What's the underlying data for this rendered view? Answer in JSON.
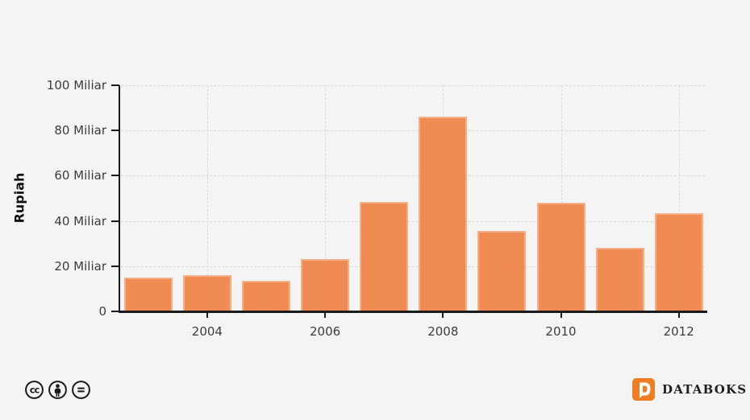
{
  "chart_data": {
    "type": "bar",
    "title": "",
    "xlabel": "",
    "ylabel": "Rupiah",
    "unit": "Miliar",
    "categories": [
      "2003",
      "2004",
      "2005",
      "2006",
      "2007",
      "2008",
      "2009",
      "2010",
      "2011",
      "2012"
    ],
    "values": [
      15,
      16,
      13.5,
      23,
      48.5,
      86,
      35.5,
      48,
      28,
      43.5
    ],
    "ylim": [
      0,
      100
    ],
    "yticks": [
      {
        "value": 0,
        "label": "0"
      },
      {
        "value": 20,
        "label": "20 Miliar"
      },
      {
        "value": 40,
        "label": "40 Miliar"
      },
      {
        "value": 60,
        "label": "60 Miliar"
      },
      {
        "value": 80,
        "label": "80 Miliar"
      },
      {
        "value": 100,
        "label": "100 Miliar"
      }
    ],
    "xtick_labels": [
      "2004",
      "2006",
      "2008",
      "2010",
      "2012"
    ],
    "grid": true,
    "legend_position": "none",
    "bar_color": "#F0894E",
    "bar_border_color": "#F5AE85",
    "background_color": "#F4F4F4",
    "grid_color": "#D8D8D8",
    "axis_color": "#1B1B1B"
  },
  "footer": {
    "license": {
      "icons": [
        "cc",
        "attribution",
        "no-derivatives"
      ]
    },
    "brand": {
      "name": "DATABOKS",
      "logo_color": "#EE7D23",
      "text_color": "#211F1E"
    }
  }
}
